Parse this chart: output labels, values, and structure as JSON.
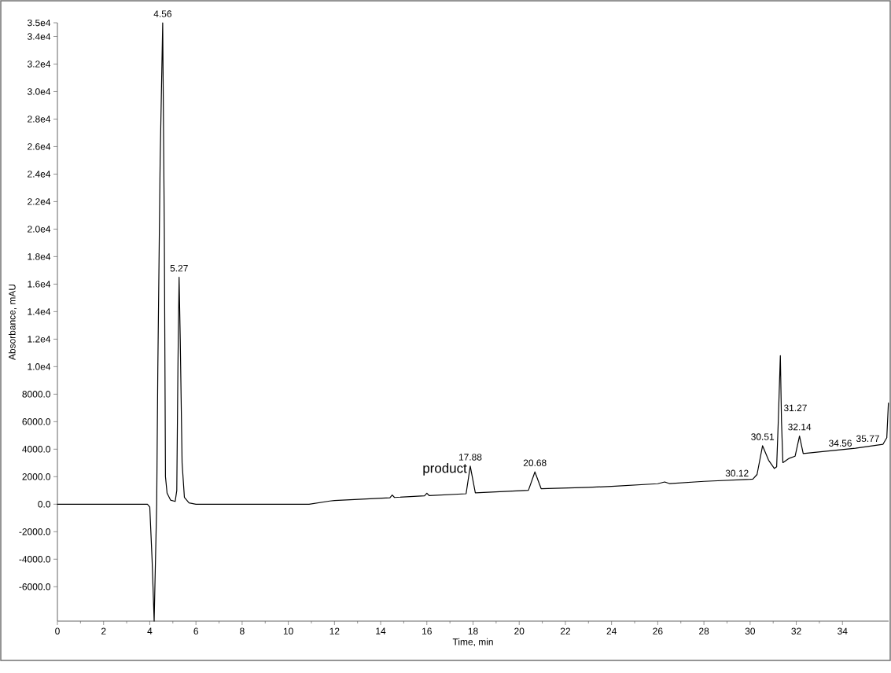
{
  "chart_data": {
    "type": "line",
    "xlabel": "Time, min",
    "ylabel": "Absorbance, mAU",
    "xlim": [
      0,
      36
    ],
    "ylim": [
      -8500,
      35000
    ],
    "xticks": [
      0,
      2,
      4,
      6,
      8,
      10,
      12,
      14,
      16,
      18,
      20,
      22,
      24,
      26,
      28,
      30,
      32,
      34
    ],
    "yticks": [
      {
        "value": 35000,
        "label": "3.5e4"
      },
      {
        "value": 34000,
        "label": "3.4e4"
      },
      {
        "value": 32000,
        "label": "3.2e4"
      },
      {
        "value": 30000,
        "label": "3.0e4"
      },
      {
        "value": 28000,
        "label": "2.8e4"
      },
      {
        "value": 26000,
        "label": "2.6e4"
      },
      {
        "value": 24000,
        "label": "2.4e4"
      },
      {
        "value": 22000,
        "label": "2.2e4"
      },
      {
        "value": 20000,
        "label": "2.0e4"
      },
      {
        "value": 18000,
        "label": "1.8e4"
      },
      {
        "value": 16000,
        "label": "1.6e4"
      },
      {
        "value": 14000,
        "label": "1.4e4"
      },
      {
        "value": 12000,
        "label": "1.2e4"
      },
      {
        "value": 10000,
        "label": "1.0e4"
      },
      {
        "value": 8000,
        "label": "8000.0"
      },
      {
        "value": 6000,
        "label": "6000.0"
      },
      {
        "value": 4000,
        "label": "4000.0"
      },
      {
        "value": 2000,
        "label": "2000.0"
      },
      {
        "value": 0,
        "label": "0.0"
      },
      {
        "value": -2000,
        "label": "-2000.0"
      },
      {
        "value": -4000,
        "label": "-4000.0"
      },
      {
        "value": -6000,
        "label": "-6000.0"
      }
    ],
    "marker": "none",
    "line_style": "solid",
    "series": [
      {
        "color": "#000000",
        "x": [
          0,
          3.9,
          4.0,
          4.1,
          4.19,
          4.3,
          4.35,
          4.45,
          4.56,
          4.63,
          4.68,
          4.75,
          4.9,
          5.1,
          5.17,
          5.22,
          5.27,
          5.32,
          5.4,
          5.5,
          5.7,
          6,
          10.9,
          11.8,
          12,
          14.4,
          14.5,
          14.6,
          15.9,
          16.0,
          16.1,
          17.7,
          17.88,
          18.1,
          20.4,
          20.68,
          20.95,
          23,
          24,
          26,
          26.3,
          26.5,
          28,
          30,
          30.12,
          30.3,
          30.54,
          30.8,
          31.05,
          31.15,
          31.22,
          31.31,
          31.36,
          31.42,
          31.7,
          31.95,
          32.14,
          32.3,
          34.56,
          35.75,
          35.92,
          35.99
        ],
        "values": [
          0,
          0,
          -200,
          -4000,
          -8500,
          0,
          10000,
          25000,
          35000,
          20000,
          2000,
          800,
          300,
          200,
          1000,
          10000,
          16500,
          12000,
          3000,
          500,
          100,
          0,
          0,
          230,
          270,
          470,
          670,
          490,
          610,
          800,
          630,
          760,
          2770,
          820,
          1010,
          2350,
          1130,
          1220,
          1300,
          1490,
          1620,
          1500,
          1660,
          1810,
          1830,
          2160,
          4250,
          3200,
          2600,
          2720,
          6000,
          10800,
          6000,
          3020,
          3340,
          3490,
          4960,
          3680,
          4070,
          4350,
          4830,
          7350
        ]
      }
    ],
    "annotations": [
      {
        "text": "4.56",
        "x": 4.56,
        "y": 35000
      },
      {
        "text": "5.27",
        "x": 5.27,
        "y": 16500
      },
      {
        "text": "17.88",
        "x": 17.88,
        "y": 2770
      },
      {
        "text": "20.68",
        "x": 20.68,
        "y": 2350
      },
      {
        "text": "30.12",
        "x": 30.12,
        "y": 1830
      },
      {
        "text": "30.51",
        "x": 30.54,
        "y": 4250
      },
      {
        "text": "31.27",
        "x": 31.31,
        "y": 7000
      },
      {
        "text": "32.14",
        "x": 32.14,
        "y": 4960
      },
      {
        "text": "34.56",
        "x": 34.56,
        "y": 4070
      },
      {
        "text": "35.77",
        "x": 35.75,
        "y": 4350
      },
      {
        "text": "product",
        "x": 17.88,
        "y": 2770
      }
    ]
  }
}
